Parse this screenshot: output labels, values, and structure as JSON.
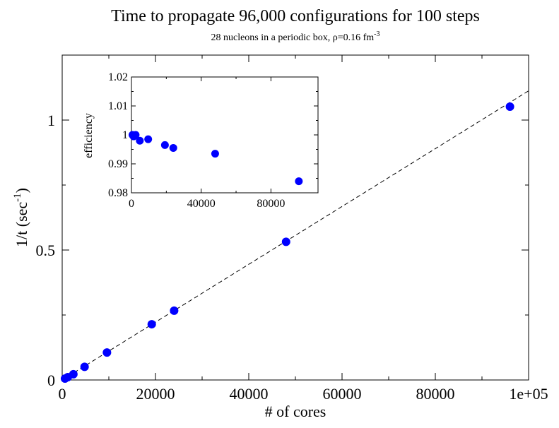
{
  "chart_data": [
    {
      "type": "scatter",
      "title": "Time to propagate 96,000 configurations for 100 steps",
      "subtitle": {
        "text": "28 nucleons in a periodic box, ρ=0.16 fm",
        "superscript": "-3"
      },
      "xlabel": "# of cores",
      "ylabel": {
        "text": "1/t (sec",
        "superscript": "-1",
        "close": ")"
      },
      "xlim": [
        0,
        100000
      ],
      "ylim": [
        0,
        1.25
      ],
      "xticks": [
        {
          "value": 0,
          "label": "0"
        },
        {
          "value": 20000,
          "label": "20000"
        },
        {
          "value": 40000,
          "label": "40000"
        },
        {
          "value": 60000,
          "label": "60000"
        },
        {
          "value": 80000,
          "label": "80000"
        },
        {
          "value": 100000,
          "label": "1e+05"
        }
      ],
      "yticks": [
        {
          "value": 0,
          "label": "0"
        },
        {
          "value": 0.5,
          "label": "0.5"
        },
        {
          "value": 1,
          "label": "1"
        }
      ],
      "series": [
        {
          "marker_color": "#0000ff",
          "x": [
            600,
            1200,
            2400,
            4800,
            9600,
            19200,
            24000,
            48000,
            96000
          ],
          "y": [
            0.0055,
            0.011,
            0.022,
            0.0505,
            0.1055,
            0.2145,
            0.2665,
            0.5315,
            1.0515
          ]
        }
      ],
      "fit_line": {
        "style": "dashed",
        "color": "#000000",
        "x": [
          0,
          100000
        ],
        "y": [
          0,
          1.1125
        ]
      },
      "grid": false,
      "legend": "none"
    },
    {
      "type": "scatter",
      "inset": true,
      "title": "",
      "xlabel": "",
      "ylabel": "efficiency",
      "xlim": [
        0,
        107000
      ],
      "ylim": [
        0.98,
        1.02
      ],
      "xticks": [
        {
          "value": 0,
          "label": "0"
        },
        {
          "value": 40000,
          "label": "40000"
        },
        {
          "value": 80000,
          "label": "80000"
        }
      ],
      "yticks": [
        {
          "value": 0.98,
          "label": "0.98"
        },
        {
          "value": 0.99,
          "label": "0.99"
        },
        {
          "value": 1.0,
          "label": "1"
        },
        {
          "value": 1.01,
          "label": "1.01"
        },
        {
          "value": 1.02,
          "label": "1.02"
        }
      ],
      "series": [
        {
          "marker_color": "#0000ff",
          "x": [
            600,
            1200,
            2400,
            4800,
            9600,
            19200,
            24000,
            48000,
            96000
          ],
          "y": [
            1.0,
            0.9995,
            1.0,
            0.998,
            0.9985,
            0.9965,
            0.9955,
            0.9935,
            0.984
          ]
        }
      ],
      "grid": false,
      "legend": "none"
    }
  ]
}
